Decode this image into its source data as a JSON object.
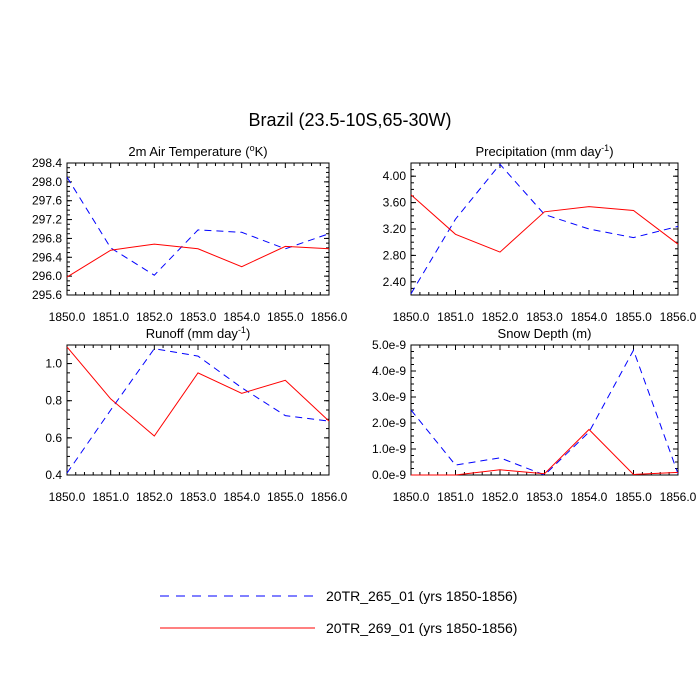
{
  "chart_data": {
    "title": "Brazil (23.5-10S,65-30W)",
    "type": "line",
    "legend": [
      {
        "name": "20TR_265_01 (yrs 1850-1856)",
        "color": "#0000ff",
        "dash": "dashed"
      },
      {
        "name": "20TR_269_01 (yrs 1850-1856)",
        "color": "#ff0000",
        "dash": "solid"
      }
    ],
    "x": [
      1850,
      1851,
      1852,
      1853,
      1854,
      1855,
      1856
    ],
    "xticks": [
      "1850.0",
      "1851.0",
      "1852.0",
      "1853.0",
      "1854.0",
      "1855.0",
      "1856.0"
    ],
    "panels": [
      {
        "title": "2m Air Temperature (",
        "title_sup": "o",
        "title_end": "K)",
        "ylim": [
          295.6,
          298.4
        ],
        "yticks": [
          295.6,
          296.0,
          296.4,
          296.8,
          297.2,
          297.6,
          298.0,
          298.4
        ],
        "yticklabels": [
          "295.6",
          "296.0",
          "296.4",
          "296.8",
          "297.2",
          "297.6",
          "298.0",
          "298.4"
        ],
        "series": [
          {
            "name": "20TR_265_01 (yrs 1850-1856)",
            "values": [
              298.1,
              296.6,
              296.02,
              296.98,
              296.93,
              296.58,
              296.9
            ]
          },
          {
            "name": "20TR_269_01 (yrs 1850-1856)",
            "values": [
              295.98,
              296.55,
              296.68,
              296.58,
              296.2,
              296.63,
              296.58
            ]
          }
        ]
      },
      {
        "title": "Precipitation (mm day",
        "title_sup": "-1",
        "title_end": ")",
        "ylim": [
          2.2,
          4.2
        ],
        "yticks": [
          2.4,
          2.8,
          3.2,
          3.6,
          4.0
        ],
        "yticklabels": [
          "2.40",
          "2.80",
          "3.20",
          "3.60",
          "4.00"
        ],
        "series": [
          {
            "name": "20TR_265_01 (yrs 1850-1856)",
            "values": [
              2.22,
              3.35,
              4.18,
              3.42,
              3.2,
              3.07,
              3.24
            ]
          },
          {
            "name": "20TR_269_01 (yrs 1850-1856)",
            "values": [
              3.72,
              3.12,
              2.85,
              3.46,
              3.54,
              3.48,
              2.97
            ]
          }
        ]
      },
      {
        "title": "Runoff (mm day",
        "title_sup": "-1",
        "title_end": ")",
        "ylim": [
          0.4,
          1.1
        ],
        "yticks": [
          0.4,
          0.6,
          0.8,
          1.0
        ],
        "yticklabels": [
          "0.4",
          "0.6",
          "0.8",
          "1.0"
        ],
        "series": [
          {
            "name": "20TR_265_01 (yrs 1850-1856)",
            "values": [
              0.41,
              0.75,
              1.08,
              1.04,
              0.87,
              0.72,
              0.69
            ]
          },
          {
            "name": "20TR_269_01 (yrs 1850-1856)",
            "values": [
              1.09,
              0.81,
              0.61,
              0.95,
              0.84,
              0.91,
              0.69
            ]
          }
        ]
      },
      {
        "title": "Snow Depth (m)",
        "title_sup": "",
        "title_end": "",
        "ylim": [
          0.0,
          5e-09
        ],
        "yticks": [
          0.0,
          1e-09,
          2e-09,
          3e-09,
          4e-09,
          5e-09
        ],
        "yticklabels": [
          "0.0e-9",
          "1.0e-9",
          "2.0e-9",
          "3.0e-9",
          "4.0e-9",
          "5.0e-9"
        ],
        "series": [
          {
            "name": "20TR_265_01 (yrs 1850-1856)",
            "values": [
              2.5e-09,
              3.8e-10,
              6.6e-10,
              0.0,
              1.65e-09,
              4.8e-09,
              5e-11
            ]
          },
          {
            "name": "20TR_269_01 (yrs 1850-1856)",
            "values": [
              0.0,
              0.0,
              2e-10,
              5e-11,
              1.75e-09,
              2e-11,
              1e-10
            ]
          }
        ]
      }
    ]
  }
}
